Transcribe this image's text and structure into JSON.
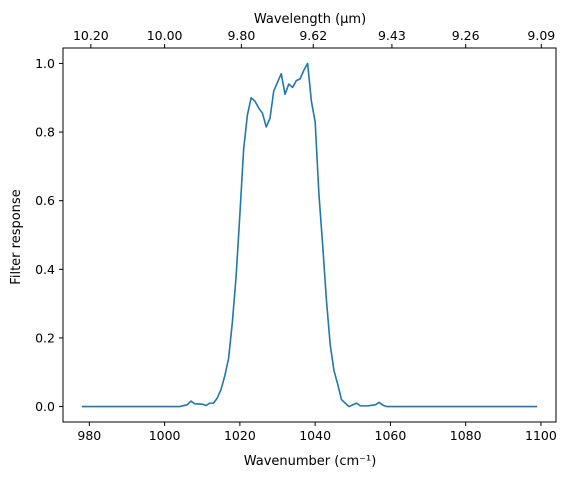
{
  "chart_data": {
    "type": "line",
    "title": "",
    "xlabel": "Wavenumber (cm⁻¹)",
    "ylabel": "Filter response",
    "top_xlabel": "Wavelength (μm)",
    "xlim": [
      973,
      1104
    ],
    "ylim": [
      -0.045,
      1.045
    ],
    "grid": false,
    "legend": "none",
    "line_color": "#1f77b4",
    "x_ticks": [
      {
        "value": 980,
        "label": "980"
      },
      {
        "value": 1000,
        "label": "1000"
      },
      {
        "value": 1020,
        "label": "1020"
      },
      {
        "value": 1040,
        "label": "1040"
      },
      {
        "value": 1060,
        "label": "1060"
      },
      {
        "value": 1080,
        "label": "1080"
      },
      {
        "value": 1100,
        "label": "1100"
      }
    ],
    "y_ticks": [
      {
        "value": 0.0,
        "label": "0.0"
      },
      {
        "value": 0.2,
        "label": "0.2"
      },
      {
        "value": 0.4,
        "label": "0.4"
      },
      {
        "value": 0.6,
        "label": "0.6"
      },
      {
        "value": 0.8,
        "label": "0.8"
      },
      {
        "value": 1.0,
        "label": "1.0"
      }
    ],
    "top_ticks": [
      {
        "value": 980.4,
        "label": "10.20"
      },
      {
        "value": 1000.0,
        "label": "10.00"
      },
      {
        "value": 1020.4,
        "label": "9.80"
      },
      {
        "value": 1039.5,
        "label": "9.62"
      },
      {
        "value": 1060.4,
        "label": "9.43"
      },
      {
        "value": 1080.0,
        "label": "9.26"
      },
      {
        "value": 1100.1,
        "label": "9.09"
      }
    ],
    "series": [
      {
        "x": [
          978,
          982,
          986,
          990,
          994,
          998,
          1002,
          1004,
          1006,
          1007,
          1008,
          1010,
          1011,
          1012,
          1013,
          1014,
          1015,
          1016,
          1017,
          1018,
          1019,
          1020,
          1021,
          1022,
          1023,
          1024,
          1025,
          1026,
          1027,
          1028,
          1029,
          1030,
          1031,
          1032,
          1033,
          1034,
          1035,
          1036,
          1037,
          1038,
          1039,
          1040,
          1041,
          1042,
          1043,
          1044,
          1045,
          1046,
          1047,
          1048,
          1049,
          1050,
          1051,
          1052,
          1054,
          1056,
          1057,
          1058,
          1059,
          1060,
          1061,
          1062,
          1063,
          1064,
          1065,
          1066,
          1067,
          1068,
          1072,
          1076,
          1080,
          1084,
          1088,
          1092,
          1096,
          1099
        ],
        "y": [
          0.0,
          0.0,
          0.0,
          0.0,
          0.0,
          0.0,
          0.0,
          0.0,
          0.005,
          0.016,
          0.008,
          0.007,
          0.003,
          0.01,
          0.01,
          0.025,
          0.05,
          0.09,
          0.14,
          0.245,
          0.38,
          0.56,
          0.75,
          0.85,
          0.9,
          0.89,
          0.87,
          0.855,
          0.815,
          0.84,
          0.92,
          0.945,
          0.97,
          0.91,
          0.94,
          0.93,
          0.95,
          0.955,
          0.98,
          1.0,
          0.89,
          0.83,
          0.62,
          0.47,
          0.31,
          0.18,
          0.105,
          0.065,
          0.02,
          0.01,
          0.0,
          0.005,
          0.01,
          0.002,
          0.002,
          0.005,
          0.012,
          0.004,
          0.0,
          0.0,
          0.0,
          0.0,
          0.0,
          0.0,
          0.0,
          0.0,
          0.0,
          0.0,
          0.0,
          0.0,
          0.0,
          0.0,
          0.0,
          0.0,
          0.0,
          0.0
        ]
      }
    ]
  }
}
